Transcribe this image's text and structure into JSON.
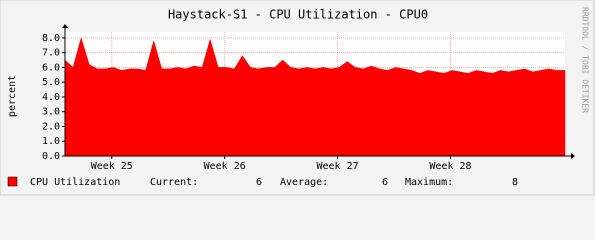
{
  "chart_data": {
    "type": "area",
    "title": "Haystack-S1 - CPU Utilization - CPU0",
    "ylabel": "percent",
    "watermark": "RRDTOOL / TOBI OETIKER",
    "x": [
      0,
      0.5,
      1,
      1.5,
      2,
      2.5,
      3,
      3.5,
      4,
      4.5,
      5,
      5.5,
      6,
      6.5,
      7,
      7.5,
      8,
      8.5,
      9,
      9.5,
      10,
      10.5,
      11,
      11.5,
      12,
      12.5,
      13,
      13.5,
      14,
      14.5,
      15,
      15.5,
      16,
      16.5,
      17,
      17.5,
      18,
      18.5,
      19,
      19.5,
      20,
      20.5,
      21,
      21.5,
      22,
      22.5,
      23,
      23.5,
      24,
      24.5,
      25,
      25.5,
      26,
      26.5,
      27,
      27.5,
      28,
      28.5,
      29,
      29.5,
      30,
      30.5,
      31
    ],
    "series": [
      {
        "name": "CPU Utilization",
        "color": "#ff0000",
        "values": [
          6.5,
          6.0,
          8.0,
          6.2,
          5.9,
          5.9,
          6.0,
          5.8,
          5.9,
          5.9,
          5.8,
          7.8,
          5.9,
          5.9,
          6.0,
          5.9,
          6.1,
          6.0,
          7.9,
          6.0,
          6.0,
          5.9,
          6.8,
          6.0,
          5.9,
          6.0,
          6.0,
          6.5,
          6.0,
          5.9,
          6.0,
          5.9,
          6.0,
          5.9,
          6.0,
          6.4,
          6.0,
          5.9,
          6.1,
          5.9,
          5.8,
          6.0,
          5.9,
          5.8,
          5.6,
          5.8,
          5.7,
          5.6,
          5.8,
          5.7,
          5.6,
          5.8,
          5.7,
          5.6,
          5.8,
          5.7,
          5.8,
          5.9,
          5.7,
          5.8,
          5.9,
          5.8,
          5.8
        ]
      }
    ],
    "xlim": [
      0,
      31
    ],
    "xticks": [
      {
        "value": 2.9,
        "label": "Week 25"
      },
      {
        "value": 9.9,
        "label": "Week 26"
      },
      {
        "value": 16.9,
        "label": "Week 27"
      },
      {
        "value": 23.9,
        "label": "Week 28"
      }
    ],
    "ylim": [
      0,
      8.4
    ],
    "yticks": [
      {
        "value": 0,
        "label": "0.0"
      },
      {
        "value": 1,
        "label": "1.0"
      },
      {
        "value": 2,
        "label": "2.0"
      },
      {
        "value": 3,
        "label": "3.0"
      },
      {
        "value": 4,
        "label": "4.0"
      },
      {
        "value": 5,
        "label": "5.0"
      },
      {
        "value": 6,
        "label": "6.0"
      },
      {
        "value": 7,
        "label": "7.0"
      },
      {
        "value": 8,
        "label": "8.0"
      }
    ],
    "grid": true,
    "legend_stats": [
      {
        "label": "Current:",
        "value": 6
      },
      {
        "label": "Average:",
        "value": 6
      },
      {
        "label": "Maximum:",
        "value": 8
      }
    ]
  }
}
